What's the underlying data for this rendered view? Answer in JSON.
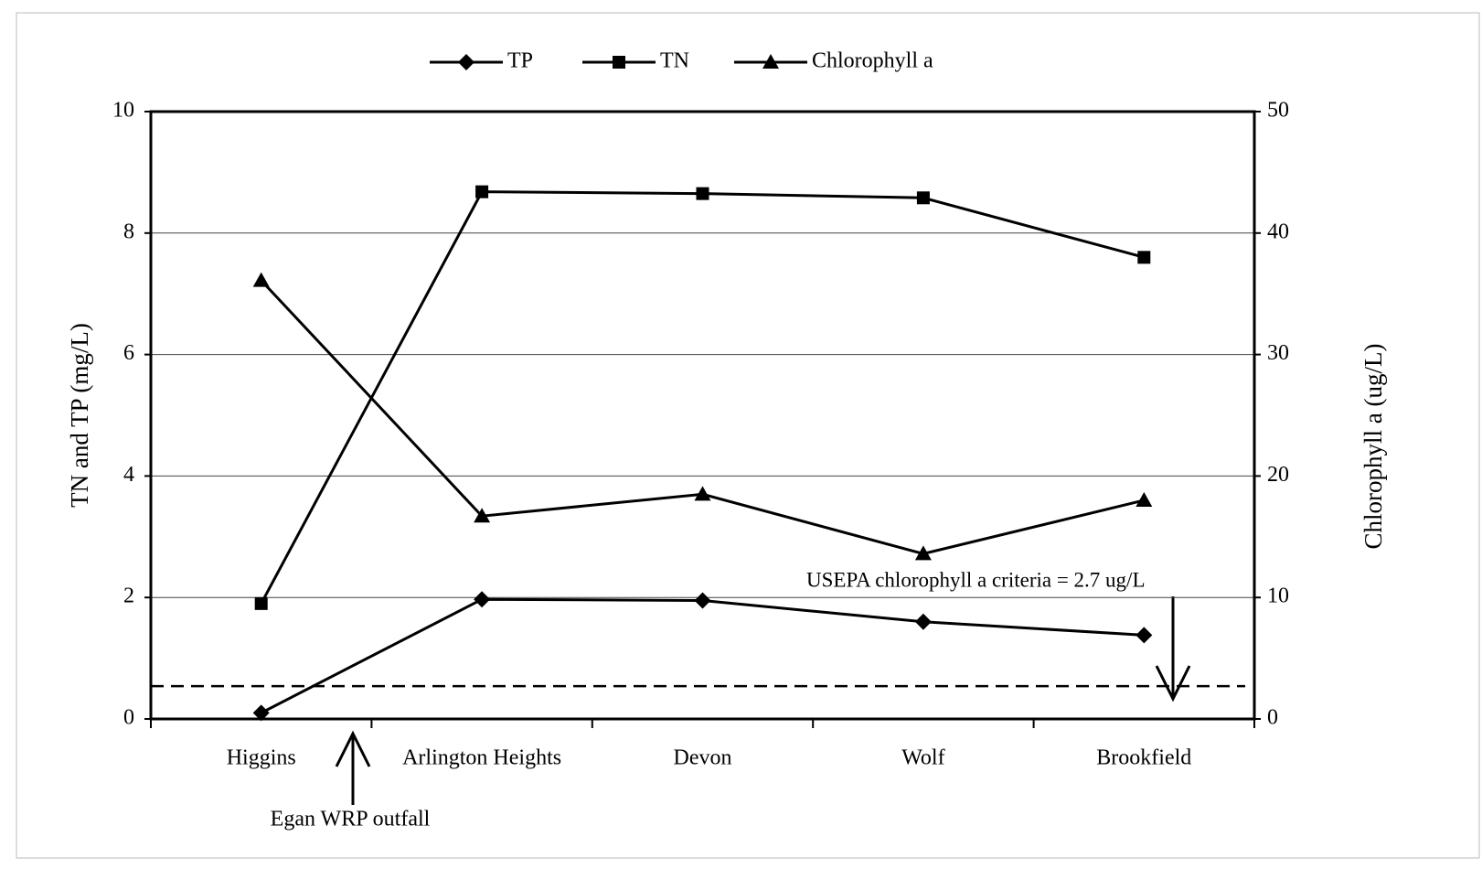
{
  "chart_data": {
    "type": "line",
    "categories": [
      "Higgins",
      "Arlington Heights",
      "Devon",
      "Wolf",
      "Brookfield"
    ],
    "series": [
      {
        "name": "TP",
        "color": "#000000",
        "marker": "diamond",
        "values": [
          0.1,
          1.97,
          1.95,
          1.6,
          1.38
        ]
      },
      {
        "name": "TN",
        "color": "#000000",
        "marker": "square",
        "values": [
          1.9,
          8.68,
          8.65,
          8.58,
          7.6
        ]
      },
      {
        "name": "Chlorophyll a",
        "color": "#000000",
        "marker": "triangle",
        "axis": "y2",
        "values": [
          36.1,
          16.7,
          18.5,
          13.6,
          18.0
        ]
      }
    ],
    "ylabel": "TN and TP (mg/L)",
    "y2label": "Chlorophyll a (ug/L)",
    "ylim": [
      0,
      10
    ],
    "yticks": [
      0,
      2,
      4,
      6,
      8,
      10
    ],
    "y2lim": [
      0,
      50
    ],
    "y2ticks": [
      0,
      10,
      20,
      30,
      40,
      50
    ],
    "grid": true,
    "legend": "top",
    "criteria_line": {
      "value": 2.7,
      "axis": "y2"
    },
    "annotations": [
      {
        "text": "USEPA chlorophyll a criteria = 2.7 ug/L"
      },
      {
        "text": "Egan WRP outfall"
      }
    ]
  }
}
